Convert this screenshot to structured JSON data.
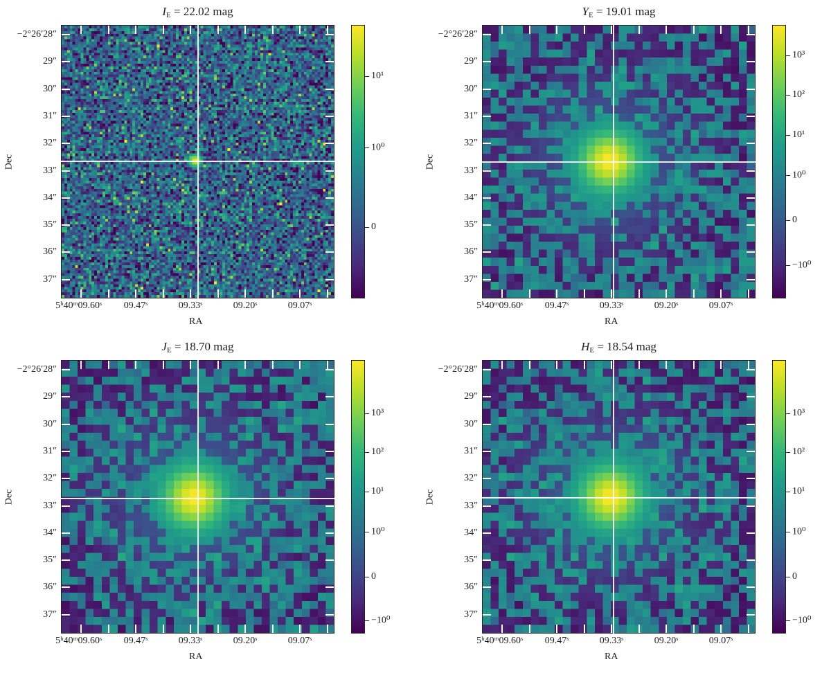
{
  "chart_data": [
    {
      "type": "heatmap",
      "title": {
        "band": "I",
        "sub": "E",
        "rest": " = 22.02 mag"
      },
      "xlabel": "RA",
      "ylabel": "Dec",
      "x_ticks": [
        "5ʰ40ᵐ09.60ˢ",
        "09.47ˢ",
        "09.33ˢ",
        "09.20ˢ",
        "09.07ˢ"
      ],
      "y_ticks": [
        "−2°26′28″",
        "29″",
        "30″",
        "31″",
        "32″",
        "33″",
        "34″",
        "35″",
        "36″",
        "37″"
      ],
      "colorbar_ticks": [
        "10¹",
        "10⁰",
        "0"
      ],
      "colorbar_scale": "symlog",
      "grid_cells": 100,
      "colormap": "viridis"
    },
    {
      "type": "heatmap",
      "title": {
        "band": "Y",
        "sub": "E",
        "rest": " = 19.01 mag"
      },
      "xlabel": "RA",
      "ylabel": "Dec",
      "x_ticks": [
        "5ʰ40ᵐ09.60ˢ",
        "09.47ˢ",
        "09.33ˢ",
        "09.20ˢ",
        "09.07ˢ"
      ],
      "y_ticks": [
        "−2°26′28″",
        "29″",
        "30″",
        "31″",
        "32″",
        "33″",
        "34″",
        "35″",
        "36″",
        "37″"
      ],
      "colorbar_ticks": [
        "10³",
        "10²",
        "10¹",
        "10⁰",
        "0",
        "−10⁰"
      ],
      "colorbar_scale": "symlog",
      "grid_cells": 34,
      "colormap": "viridis"
    },
    {
      "type": "heatmap",
      "title": {
        "band": "J",
        "sub": "E",
        "rest": " = 18.70 mag"
      },
      "xlabel": "RA",
      "ylabel": "Dec",
      "x_ticks": [
        "5ʰ40ᵐ09.60ˢ",
        "09.47ˢ",
        "09.33ˢ",
        "09.20ˢ",
        "09.07ˢ"
      ],
      "y_ticks": [
        "−2°26′28″",
        "29″",
        "30″",
        "31″",
        "32″",
        "33″",
        "34″",
        "35″",
        "36″",
        "37″"
      ],
      "colorbar_ticks": [
        "10³",
        "10²",
        "10¹",
        "10⁰",
        "0",
        "−10⁰"
      ],
      "colorbar_scale": "symlog",
      "grid_cells": 34,
      "colormap": "viridis"
    },
    {
      "type": "heatmap",
      "title": {
        "band": "H",
        "sub": "E",
        "rest": " = 18.54 mag"
      },
      "xlabel": "RA",
      "ylabel": "Dec",
      "x_ticks": [
        "5ʰ40ᵐ09.60ˢ",
        "09.47ˢ",
        "09.33ˢ",
        "09.20ˢ",
        "09.07ˢ"
      ],
      "y_ticks": [
        "−2°26′28″",
        "29″",
        "30″",
        "31″",
        "32″",
        "33″",
        "34″",
        "35″",
        "36″",
        "37″"
      ],
      "colorbar_ticks": [
        "10³",
        "10²",
        "10¹",
        "10⁰",
        "0",
        "−10⁰"
      ],
      "colorbar_scale": "symlog",
      "grid_cells": 34,
      "colormap": "viridis"
    }
  ]
}
